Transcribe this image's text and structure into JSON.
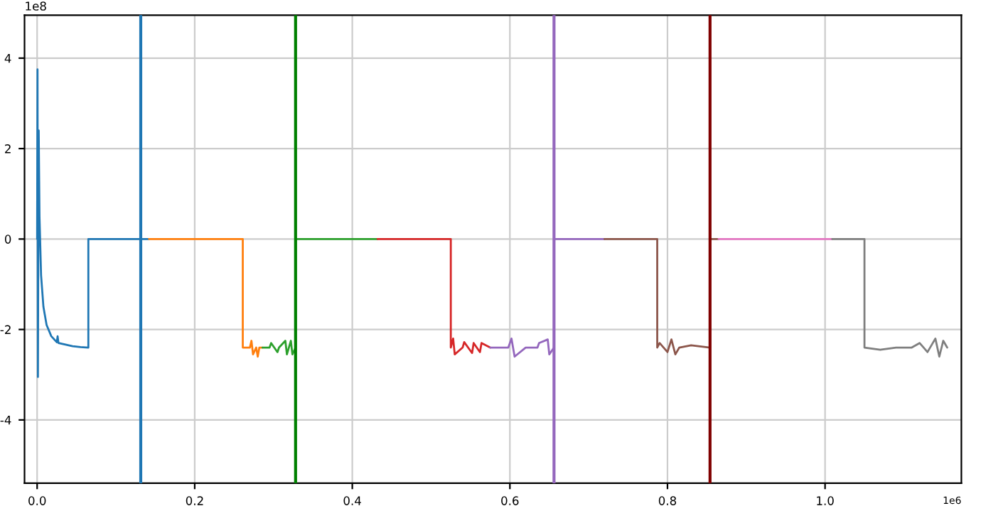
{
  "chart_data": {
    "type": "line",
    "annotations": [
      "1e8",
      "1e6"
    ],
    "xlim": [
      -0.016,
      1.173
    ],
    "ylim": [
      -5.4,
      4.95
    ],
    "xticks": [
      {
        "value": 0,
        "label": "0.0"
      },
      {
        "value": 0.2,
        "label": "0.2"
      },
      {
        "value": 0.4,
        "label": "0.4"
      },
      {
        "value": 0.6,
        "label": "0.6"
      },
      {
        "value": 0.8,
        "label": "0.8"
      },
      {
        "value": 1.0,
        "label": "1.0"
      }
    ],
    "yticks": [
      -4,
      -2,
      0,
      2,
      4
    ],
    "grid": true,
    "legend": false,
    "marker": "none",
    "line_style": "solid",
    "series": [
      {
        "color": "#1f77b4",
        "x": [
          0,
          0.0005,
          0.001,
          0.0015,
          0.002,
          0.003,
          0.005,
          0.008,
          0.012,
          0.018,
          0.025,
          0.026,
          0.027,
          0.035,
          0.045,
          0.055,
          0.065,
          0.065,
          0.142
        ],
        "values": [
          0,
          3.75,
          -3.05,
          0,
          2.4,
          0.5,
          -0.8,
          -1.5,
          -1.9,
          -2.15,
          -2.28,
          -2.15,
          -2.3,
          -2.33,
          -2.37,
          -2.39,
          -2.4,
          0,
          0
        ]
      },
      {
        "color": "#ff7f0e",
        "x": [
          0.142,
          0.261,
          0.261,
          0.265,
          0.27,
          0.272,
          0.274,
          0.278,
          0.28,
          0.282,
          0.286
        ],
        "values": [
          0,
          0,
          -2.4,
          -2.4,
          -2.4,
          -2.25,
          -2.55,
          -2.4,
          -2.6,
          -2.4,
          -2.4
        ]
      },
      {
        "color": "#2ca02c",
        "x": [
          0.286,
          0.295,
          0.297,
          0.305,
          0.307,
          0.315,
          0.317,
          0.322,
          0.324,
          0.328,
          0.328,
          0.432
        ],
        "values": [
          -2.4,
          -2.4,
          -2.3,
          -2.5,
          -2.4,
          -2.25,
          -2.55,
          -2.25,
          -2.55,
          -2.4,
          0,
          0
        ]
      },
      {
        "color": "#d62728",
        "x": [
          0.432,
          0.525,
          0.525,
          0.528,
          0.53,
          0.54,
          0.542,
          0.552,
          0.554,
          0.562,
          0.564,
          0.575
        ],
        "values": [
          0,
          0,
          -2.4,
          -2.2,
          -2.55,
          -2.4,
          -2.28,
          -2.52,
          -2.3,
          -2.5,
          -2.3,
          -2.4
        ]
      },
      {
        "color": "#9467bd",
        "x": [
          0.575,
          0.598,
          0.602,
          0.606,
          0.62,
          0.635,
          0.637,
          0.648,
          0.65,
          0.656,
          0.656,
          0.72
        ],
        "values": [
          -2.4,
          -2.4,
          -2.2,
          -2.6,
          -2.4,
          -2.4,
          -2.3,
          -2.22,
          -2.55,
          -2.4,
          0,
          0
        ]
      },
      {
        "color": "#8c564b",
        "x": [
          0.72,
          0.787,
          0.787,
          0.79,
          0.8,
          0.805,
          0.81,
          0.815,
          0.83,
          0.854,
          0.854,
          0.865
        ],
        "values": [
          0,
          0,
          -2.4,
          -2.3,
          -2.5,
          -2.22,
          -2.55,
          -2.4,
          -2.35,
          -2.4,
          0,
          0
        ]
      },
      {
        "color": "#e377c2",
        "x": [
          0.865,
          1.009
        ],
        "values": [
          0,
          0
        ]
      },
      {
        "color": "#7f7f7f",
        "x": [
          1.009,
          1.05,
          1.05,
          1.07,
          1.09,
          1.11,
          1.12,
          1.13,
          1.14,
          1.145,
          1.15,
          1.155
        ],
        "values": [
          0,
          0,
          -2.4,
          -2.45,
          -2.4,
          -2.4,
          -2.3,
          -2.5,
          -2.2,
          -2.6,
          -2.25,
          -2.4
        ]
      }
    ],
    "ref_lines": [
      {
        "axis": "x",
        "value": 0.1315,
        "color": "#1f77b4"
      },
      {
        "axis": "x",
        "value": 0.328,
        "color": "#008000"
      },
      {
        "axis": "x",
        "value": 0.656,
        "color": "#9467bd"
      },
      {
        "axis": "x",
        "value": 0.854,
        "color": "#800000"
      }
    ]
  }
}
